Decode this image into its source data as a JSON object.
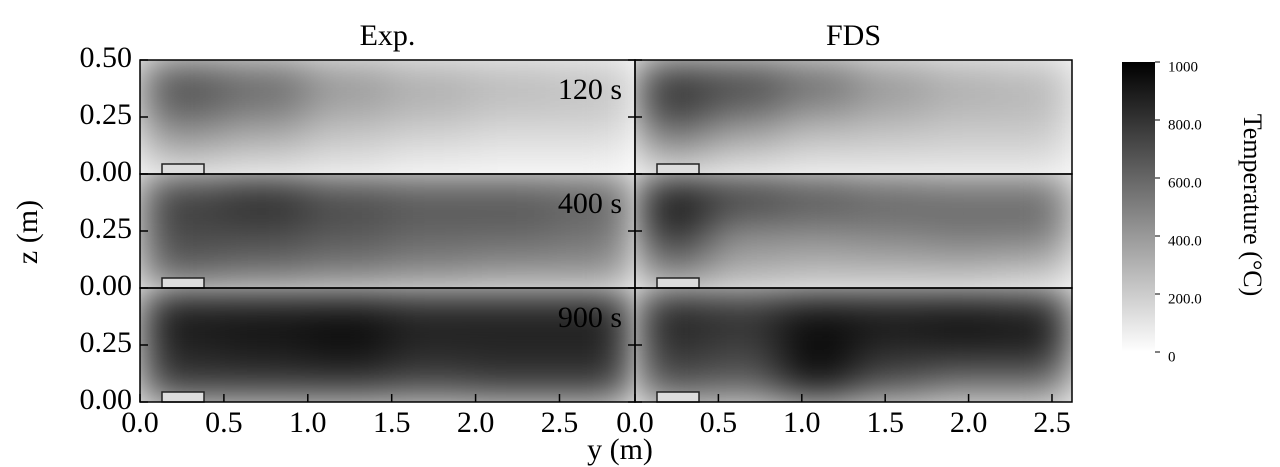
{
  "chart_data": {
    "type": "heatmap",
    "xlabel": "y (m)",
    "ylabel": "z (m)",
    "ylim": [
      0,
      0.5
    ],
    "yticks": [
      {
        "value": 0,
        "label": "0.00"
      },
      {
        "value": 0.25,
        "label": "0.25"
      },
      {
        "value": 0.5,
        "label": "0.50"
      }
    ],
    "columns": [
      {
        "title": "Exp.",
        "xlim": [
          0,
          2.95
        ],
        "xticks": [
          {
            "value": 0,
            "label": "0.0"
          },
          {
            "value": 0.5,
            "label": "0.5"
          },
          {
            "value": 1,
            "label": "1.0"
          },
          {
            "value": 1.5,
            "label": "1.5"
          },
          {
            "value": 2,
            "label": "2.0"
          },
          {
            "value": 2.5,
            "label": "2.5"
          }
        ]
      },
      {
        "title": "FDS",
        "xlim": [
          0,
          2.62
        ],
        "xticks": [
          {
            "value": 0,
            "label": "0.0"
          },
          {
            "value": 0.5,
            "label": "0.5"
          },
          {
            "value": 1,
            "label": "1.0"
          },
          {
            "value": 1.5,
            "label": "1.5"
          },
          {
            "value": 2,
            "label": "2.0"
          },
          {
            "value": 2.5,
            "label": "2.5"
          }
        ]
      }
    ],
    "rows": [
      {
        "label": "120 s",
        "values": [
          [
            [
              750,
              650,
              450,
              350,
              300,
              250
            ],
            [
              550,
              450,
              300,
              250,
              200,
              200
            ],
            [
              250,
              200,
              150,
              100,
              80,
              80
            ]
          ],
          [
            [
              850,
              800,
              650,
              450,
              350,
              300
            ],
            [
              700,
              500,
              350,
              300,
              250,
              250
            ],
            [
              300,
              200,
              150,
              150,
              150,
              150
            ]
          ]
        ]
      },
      {
        "label": "400 s",
        "values": [
          [
            [
              800,
              900,
              750,
              700,
              700,
              650
            ],
            [
              700,
              700,
              650,
              600,
              600,
              550
            ],
            [
              650,
              600,
              550,
              500,
              450,
              450
            ]
          ],
          [
            [
              950,
              850,
              750,
              650,
              600,
              600
            ],
            [
              800,
              450,
              450,
              500,
              550,
              550
            ],
            [
              500,
              350,
              300,
              300,
              300,
              250
            ]
          ]
        ]
      },
      {
        "label": "900 s",
        "values": [
          [
            [
              950,
              950,
              950,
              900,
              900,
              900
            ],
            [
              850,
              900,
              950,
              850,
              850,
              850
            ],
            [
              800,
              800,
              800,
              750,
              800,
              800
            ]
          ],
          [
            [
              900,
              850,
              950,
              950,
              950,
              900
            ],
            [
              800,
              750,
              950,
              850,
              900,
              900
            ],
            [
              700,
              650,
              950,
              700,
              550,
              550
            ]
          ]
        ]
      }
    ],
    "colorbar": {
      "label": "Temperature (°C)",
      "clim": [
        0,
        1000
      ],
      "colors": [
        "#ffffff",
        "#000000"
      ],
      "ticks": [
        0,
        {
          "value": 200,
          "label": "200.0"
        },
        {
          "value": 400,
          "label": "400.0"
        },
        {
          "value": 600,
          "label": "600.0"
        },
        {
          "value": 800,
          "label": "800.0"
        },
        1000
      ]
    }
  }
}
